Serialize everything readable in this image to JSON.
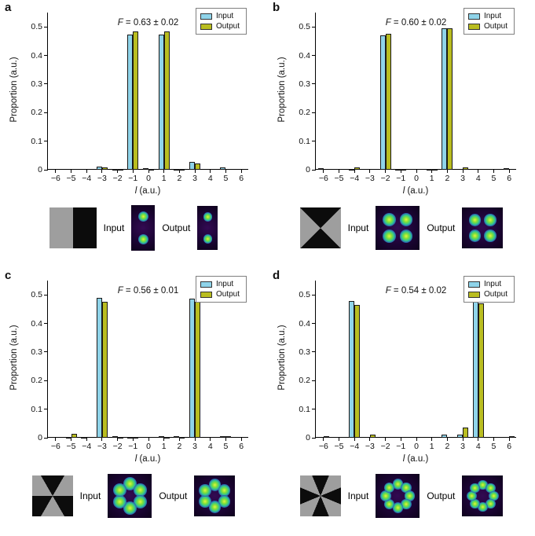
{
  "figure": {
    "ylabel": "Proportion (a.u.)",
    "xlabel_symbol": "l",
    "xlabel_rest": " (a.u.)",
    "legend": {
      "input": "Input",
      "output": "Output"
    },
    "colors": {
      "input": "#8fd4ea",
      "output": "#b9bd20",
      "bar_edge": "#1a1a1a"
    },
    "panels": [
      {
        "label": "a",
        "f_symbol": "F",
        "f_text": " = 0.63 ± 0.02",
        "input_caption": "Input",
        "output_caption": "Output",
        "mask_sectors": 2,
        "petals": 2
      },
      {
        "label": "b",
        "f_symbol": "F",
        "f_text": " = 0.60 ± 0.02",
        "input_caption": "Input",
        "output_caption": "Output",
        "mask_sectors": 4,
        "petals": 4
      },
      {
        "label": "c",
        "f_symbol": "F",
        "f_text": " = 0.56 ± 0.01",
        "input_caption": "Input",
        "output_caption": "Output",
        "mask_sectors": 6,
        "petals": 6
      },
      {
        "label": "d",
        "f_symbol": "F",
        "f_text": " = 0.54 ± 0.02",
        "input_caption": "Input",
        "output_caption": "Output",
        "mask_sectors": 8,
        "petals": 8
      }
    ]
  },
  "chart_data": [
    {
      "type": "bar",
      "title": "F = 0.63 ± 0.02",
      "categories": [
        -6,
        -5,
        -4,
        -3,
        -2,
        -1,
        0,
        1,
        2,
        3,
        4,
        5,
        6
      ],
      "series": [
        {
          "name": "Input",
          "values": [
            0,
            0,
            0,
            0.01,
            0.003,
            0.472,
            0.005,
            0.473,
            0.003,
            0.028,
            0,
            0.007,
            0
          ]
        },
        {
          "name": "Output",
          "values": [
            0,
            0,
            0,
            0.008,
            0.003,
            0.484,
            0.004,
            0.484,
            0.003,
            0.021,
            0,
            0,
            0
          ]
        }
      ],
      "xlabel": "l (a.u.)",
      "ylabel": "Proportion (a.u.)",
      "ylim": [
        0,
        0.55
      ],
      "yticks": [
        0,
        0.1,
        0.2,
        0.3,
        0.4,
        0.5
      ],
      "legend_position": "top-right",
      "grid": false
    },
    {
      "type": "bar",
      "title": "F = 0.60 ± 0.02",
      "categories": [
        -6,
        -5,
        -4,
        -3,
        -2,
        -1,
        0,
        1,
        2,
        3,
        4,
        5,
        6
      ],
      "series": [
        {
          "name": "Input",
          "values": [
            0.005,
            0,
            0.004,
            0,
            0.47,
            0.004,
            0,
            0.004,
            0.495,
            0,
            0,
            0,
            0.005
          ]
        },
        {
          "name": "Output",
          "values": [
            0,
            0,
            0.009,
            0,
            0.477,
            0.004,
            0,
            0.003,
            0.496,
            0.008,
            0,
            0,
            0
          ]
        }
      ],
      "xlabel": "l (a.u.)",
      "ylabel": "Proportion (a.u.)",
      "ylim": [
        0,
        0.55
      ],
      "yticks": [
        0,
        0.1,
        0.2,
        0.3,
        0.4,
        0.5
      ],
      "legend_position": "top-right",
      "grid": false
    },
    {
      "type": "bar",
      "title": "F = 0.56 ± 0.01",
      "categories": [
        -6,
        -5,
        -4,
        -3,
        -2,
        -1,
        0,
        1,
        2,
        3,
        4,
        5,
        6
      ],
      "series": [
        {
          "name": "Input",
          "values": [
            0,
            0.003,
            0.004,
            0.49,
            0.006,
            0.003,
            0,
            0.006,
            0.006,
            0.486,
            0,
            0.005,
            0
          ]
        },
        {
          "name": "Output",
          "values": [
            0,
            0.015,
            0,
            0.476,
            0.004,
            0.003,
            0,
            0.003,
            0.004,
            0.476,
            0,
            0.005,
            0
          ]
        }
      ],
      "xlabel": "l (a.u.)",
      "ylabel": "Proportion (a.u.)",
      "ylim": [
        0,
        0.55
      ],
      "yticks": [
        0,
        0.1,
        0.2,
        0.3,
        0.4,
        0.5
      ],
      "legend_position": "top-right",
      "grid": false
    },
    {
      "type": "bar",
      "title": "F = 0.54 ± 0.02",
      "categories": [
        -6,
        -5,
        -4,
        -3,
        -2,
        -1,
        0,
        1,
        2,
        3,
        4,
        5,
        6
      ],
      "series": [
        {
          "name": "Input",
          "values": [
            0,
            0,
            0.478,
            0,
            0,
            0,
            0,
            0,
            0.01,
            0.01,
            0.487,
            0,
            0
          ]
        },
        {
          "name": "Output",
          "values": [
            0.006,
            0,
            0.466,
            0.012,
            0,
            0,
            0,
            0,
            0,
            0.035,
            0.47,
            0,
            0.006
          ]
        }
      ],
      "xlabel": "l (a.u.)",
      "ylabel": "Proportion (a.u.)",
      "ylim": [
        0,
        0.55
      ],
      "yticks": [
        0,
        0.1,
        0.2,
        0.3,
        0.4,
        0.5
      ],
      "legend_position": "top-right",
      "grid": false
    }
  ]
}
